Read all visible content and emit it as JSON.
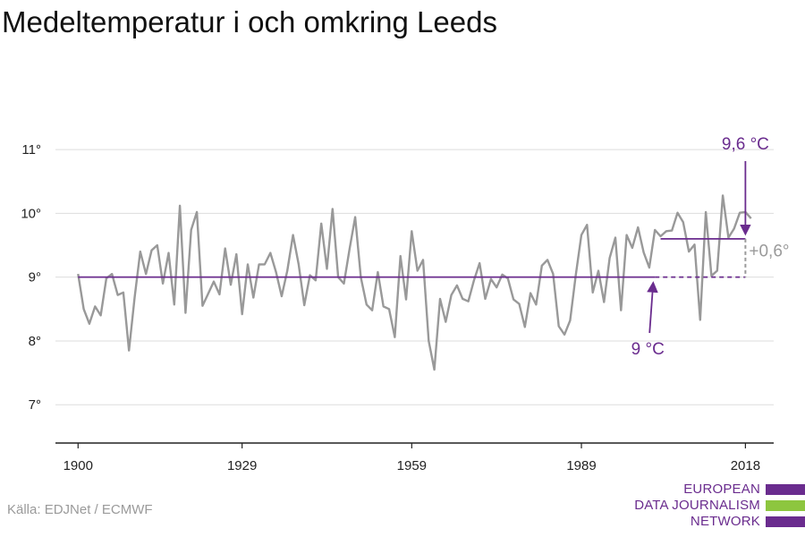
{
  "title": "Medeltemperatur i och omkring Leeds",
  "source": "Källa: EDJNet / ECMWF",
  "logo": {
    "lines": [
      "EUROPEAN",
      "DATA JOURNALISM",
      "NETWORK"
    ],
    "colors": [
      "#6a2c8e",
      "#8dc63f",
      "#6a2c8e"
    ]
  },
  "colors": {
    "series": "#999999",
    "reference": "#6a2c8e",
    "difference": "#9a9a9a",
    "grid": "#dddddd",
    "axis": "#222222"
  },
  "chart_data": {
    "type": "line",
    "title": "Medeltemperatur i och omkring Leeds",
    "xlabel": "",
    "ylabel": "",
    "xlim": [
      1896,
      2023
    ],
    "ylim": [
      6.4,
      11.45
    ],
    "x_ticks": [
      1900,
      1929,
      1959,
      1989,
      2018
    ],
    "x_tick_labels": [
      "1900",
      "1929",
      "1959",
      "1989",
      "2018"
    ],
    "y_ticks": [
      7,
      8,
      9,
      10,
      11
    ],
    "y_tick_labels": [
      "7°",
      "8°",
      "9°",
      "10°",
      "11°"
    ],
    "grid": true,
    "series": [
      {
        "x": [
          1900,
          1901,
          1902,
          1903,
          1904,
          1905,
          1906,
          1907,
          1908,
          1909,
          1910,
          1911,
          1912,
          1913,
          1914,
          1915,
          1916,
          1917,
          1918,
          1919,
          1920,
          1921,
          1922,
          1923,
          1924,
          1925,
          1926,
          1927,
          1928,
          1929,
          1930,
          1931,
          1932,
          1933,
          1934,
          1935,
          1936,
          1937,
          1938,
          1939,
          1940,
          1941,
          1942,
          1943,
          1944,
          1945,
          1946,
          1947,
          1948,
          1949,
          1950,
          1951,
          1952,
          1953,
          1954,
          1955,
          1956,
          1957,
          1958,
          1959,
          1960,
          1961,
          1962,
          1963,
          1964,
          1965,
          1966,
          1967,
          1968,
          1969,
          1970,
          1971,
          1972,
          1973,
          1974,
          1975,
          1976,
          1977,
          1978,
          1979,
          1980,
          1981,
          1982,
          1983,
          1984,
          1985,
          1986,
          1987,
          1988,
          1989,
          1990,
          1991,
          1992,
          1993,
          1994,
          1995,
          1996,
          1997,
          1998,
          1999,
          2000,
          2001,
          2002,
          2003,
          2004,
          2005,
          2006,
          2007,
          2008,
          2009,
          2010,
          2011,
          2012,
          2013,
          2014,
          2015,
          2016,
          2017,
          2018,
          2019
        ],
        "values": [
          9.05,
          8.5,
          8.27,
          8.54,
          8.4,
          8.98,
          9.05,
          8.72,
          8.76,
          7.85,
          8.68,
          9.4,
          9.05,
          9.42,
          9.5,
          8.9,
          9.38,
          8.57,
          10.12,
          8.44,
          9.74,
          10.02,
          8.55,
          8.74,
          8.93,
          8.73,
          9.45,
          8.88,
          9.36,
          8.42,
          9.2,
          8.68,
          9.2,
          9.2,
          9.38,
          9.08,
          8.7,
          9.1,
          9.66,
          9.2,
          8.56,
          9.03,
          8.95,
          9.84,
          9.13,
          10.07,
          9.0,
          8.9,
          9.44,
          9.94,
          9.0,
          8.57,
          8.48,
          9.08,
          8.54,
          8.5,
          8.06,
          9.33,
          8.65,
          9.72,
          9.1,
          9.27,
          8.0,
          7.55,
          8.66,
          8.3,
          8.72,
          8.87,
          8.66,
          8.62,
          8.95,
          9.22,
          8.66,
          8.97,
          8.84,
          9.04,
          8.98,
          8.65,
          8.58,
          8.22,
          8.75,
          8.57,
          9.18,
          9.27,
          9.05,
          8.23,
          8.1,
          8.32,
          9.03,
          9.66,
          9.82,
          8.76,
          9.1,
          8.61,
          9.3,
          9.62,
          8.48,
          9.66,
          9.46,
          9.78,
          9.39,
          9.15,
          9.74,
          9.64,
          9.72,
          9.73,
          10.01,
          9.86,
          9.4,
          9.51,
          8.33,
          10.02,
          9.02,
          9.1,
          10.28,
          9.62,
          9.76,
          10.01,
          10.02,
          9.92
        ]
      }
    ],
    "reference_lines": [
      {
        "label": "9 °C",
        "value": 9.0,
        "from": 1900,
        "to": 2002
      },
      {
        "label": "9,6 °C",
        "value": 9.6,
        "from": 2003,
        "to": 2018
      }
    ],
    "difference": {
      "label": "+0,6°",
      "from_value": 9.0,
      "to_value": 9.6
    }
  }
}
